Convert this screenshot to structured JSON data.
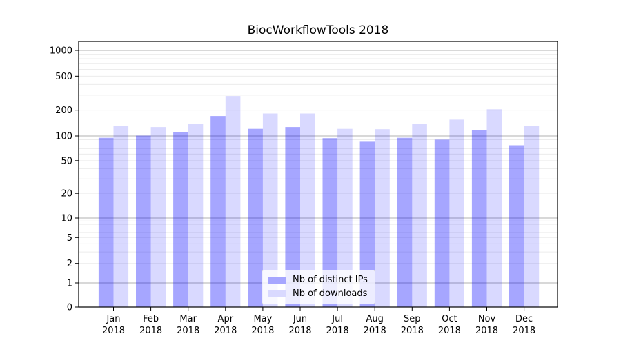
{
  "chart_data": {
    "type": "bar",
    "title": "BiocWorkflowTools 2018",
    "categories": [
      "Jan",
      "Feb",
      "Mar",
      "Apr",
      "May",
      "Jun",
      "Jul",
      "Aug",
      "Sep",
      "Oct",
      "Nov",
      "Dec"
    ],
    "category_year": "2018",
    "series": [
      {
        "name": "Nb of distinct IPs",
        "fill": "rgba(0,0,255,0.35)",
        "color_on_white": "#a6a6ff",
        "values": [
          95,
          101,
          110,
          171,
          121,
          127,
          94,
          85,
          95,
          90,
          118,
          77
        ]
      },
      {
        "name": "Nb of downloads",
        "fill": "rgba(0,0,255,0.15)",
        "color_on_white": "#d9d9ff",
        "values": [
          130,
          127,
          138,
          293,
          183,
          183,
          121,
          120,
          137,
          155,
          205,
          130
        ]
      }
    ],
    "yscale": "symlog",
    "yticks": [
      0,
      1,
      2,
      5,
      10,
      20,
      50,
      100,
      200,
      500,
      1000
    ],
    "ylim": [
      0,
      1270
    ],
    "xlabel": "",
    "ylabel": "",
    "grid": true,
    "legend_position": "lower center",
    "colors": {
      "grid_major": "#b0b0b0",
      "grid_minor": "#ececec",
      "axis": "#000000",
      "text": "#000000"
    }
  }
}
